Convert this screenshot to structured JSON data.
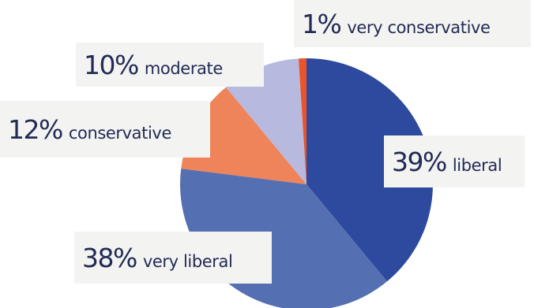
{
  "chart_data": {
    "type": "pie",
    "title": "",
    "start_angle_deg": 0,
    "direction": "clockwise",
    "slices": [
      {
        "label": "liberal",
        "value": 39,
        "value_label": "39%",
        "color": "#2d4a9e"
      },
      {
        "label": "very liberal",
        "value": 38,
        "value_label": "38%",
        "color": "#5570b2"
      },
      {
        "label": "conservative",
        "value": 12,
        "value_label": "12%",
        "color": "#ef835a"
      },
      {
        "label": "moderate",
        "value": 10,
        "value_label": "10%",
        "color": "#b8b9de"
      },
      {
        "label": "very conservative",
        "value": 1,
        "value_label": "1%",
        "color": "#e8552a"
      }
    ]
  }
}
